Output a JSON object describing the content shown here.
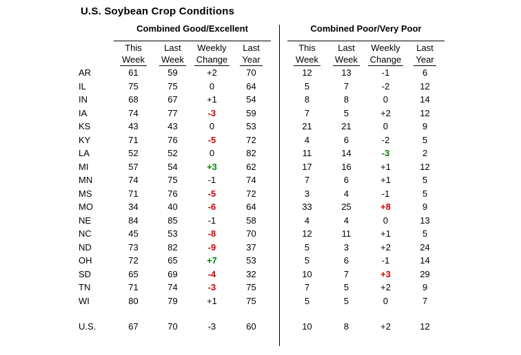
{
  "title": "U.S. Soybean Crop Conditions",
  "colors": {
    "background": "#ffffff",
    "text": "#000000",
    "rule": "#000000",
    "unfavorable_change": "#cc0000",
    "favorable_change": "#008000"
  },
  "chart_data": {
    "type": "table",
    "title": "U.S. Soybean Crop Conditions",
    "section_headers": [
      "Combined Good/Excellent",
      "Combined Poor/Very Poor"
    ],
    "column_headers_line1": [
      "This",
      "Last",
      "Weekly",
      "Last"
    ],
    "column_headers_line2": [
      "Week",
      "Week",
      "Change",
      "Year"
    ],
    "columns": [
      "This Week",
      "Last Week",
      "Weekly Change",
      "Last Year"
    ],
    "rows": [
      {
        "state": "AR",
        "good": [
          61,
          59,
          "+2",
          70
        ],
        "good_hl": "",
        "poor": [
          12,
          13,
          "-1",
          6
        ],
        "poor_hl": ""
      },
      {
        "state": "IL",
        "good": [
          75,
          75,
          "0",
          64
        ],
        "good_hl": "",
        "poor": [
          5,
          7,
          "-2",
          12
        ],
        "poor_hl": ""
      },
      {
        "state": "IN",
        "good": [
          68,
          67,
          "+1",
          54
        ],
        "good_hl": "",
        "poor": [
          8,
          8,
          "0",
          14
        ],
        "poor_hl": ""
      },
      {
        "state": "IA",
        "good": [
          74,
          77,
          "-3",
          59
        ],
        "good_hl": "unfavorable",
        "poor": [
          7,
          5,
          "+2",
          12
        ],
        "poor_hl": ""
      },
      {
        "state": "KS",
        "good": [
          43,
          43,
          "0",
          53
        ],
        "good_hl": "",
        "poor": [
          21,
          21,
          "0",
          9
        ],
        "poor_hl": ""
      },
      {
        "state": "KY",
        "good": [
          71,
          76,
          "-5",
          72
        ],
        "good_hl": "unfavorable",
        "poor": [
          4,
          6,
          "-2",
          5
        ],
        "poor_hl": ""
      },
      {
        "state": "LA",
        "good": [
          52,
          52,
          "0",
          82
        ],
        "good_hl": "",
        "poor": [
          11,
          14,
          "-3",
          2
        ],
        "poor_hl": "favorable"
      },
      {
        "state": "MI",
        "good": [
          57,
          54,
          "+3",
          62
        ],
        "good_hl": "favorable",
        "poor": [
          17,
          16,
          "+1",
          12
        ],
        "poor_hl": ""
      },
      {
        "state": "MN",
        "good": [
          74,
          75,
          "-1",
          74
        ],
        "good_hl": "",
        "poor": [
          7,
          6,
          "+1",
          5
        ],
        "poor_hl": ""
      },
      {
        "state": "MS",
        "good": [
          71,
          76,
          "-5",
          72
        ],
        "good_hl": "unfavorable",
        "poor": [
          3,
          4,
          "-1",
          5
        ],
        "poor_hl": ""
      },
      {
        "state": "MO",
        "good": [
          34,
          40,
          "-6",
          64
        ],
        "good_hl": "unfavorable",
        "poor": [
          33,
          25,
          "+8",
          9
        ],
        "poor_hl": "unfavorable"
      },
      {
        "state": "NE",
        "good": [
          84,
          85,
          "-1",
          58
        ],
        "good_hl": "",
        "poor": [
          4,
          4,
          "0",
          13
        ],
        "poor_hl": ""
      },
      {
        "state": "NC",
        "good": [
          45,
          53,
          "-8",
          70
        ],
        "good_hl": "unfavorable",
        "poor": [
          12,
          11,
          "+1",
          5
        ],
        "poor_hl": ""
      },
      {
        "state": "ND",
        "good": [
          73,
          82,
          "-9",
          37
        ],
        "good_hl": "unfavorable",
        "poor": [
          5,
          3,
          "+2",
          24
        ],
        "poor_hl": ""
      },
      {
        "state": "OH",
        "good": [
          72,
          65,
          "+7",
          53
        ],
        "good_hl": "favorable",
        "poor": [
          5,
          6,
          "-1",
          14
        ],
        "poor_hl": ""
      },
      {
        "state": "SD",
        "good": [
          65,
          69,
          "-4",
          32
        ],
        "good_hl": "unfavorable",
        "poor": [
          10,
          7,
          "+3",
          29
        ],
        "poor_hl": "unfavorable"
      },
      {
        "state": "TN",
        "good": [
          71,
          74,
          "-3",
          75
        ],
        "good_hl": "unfavorable",
        "poor": [
          7,
          5,
          "+2",
          9
        ],
        "poor_hl": ""
      },
      {
        "state": "WI",
        "good": [
          80,
          79,
          "+1",
          75
        ],
        "good_hl": "",
        "poor": [
          5,
          5,
          "0",
          7
        ],
        "poor_hl": ""
      }
    ],
    "us_row": {
      "state": "U.S.",
      "good": [
        67,
        70,
        "-3",
        60
      ],
      "good_hl": "",
      "poor": [
        10,
        8,
        "+2",
        12
      ],
      "poor_hl": ""
    }
  }
}
